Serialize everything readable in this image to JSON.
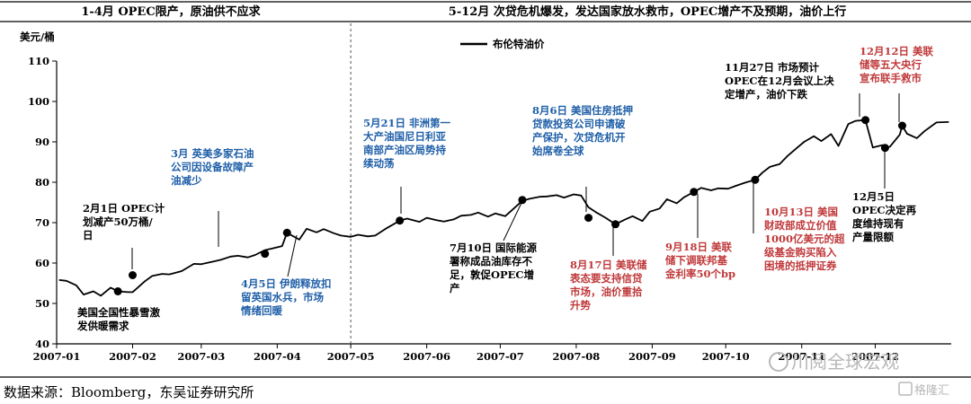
{
  "header": {
    "left": "1-4月  OPEC限产，原油供不应求",
    "right": "5-12月  次贷危机爆发，发达国家放水救市，OPEC增产不及预期，油价上行"
  },
  "source_note": "数据来源：Bloomberg，东吴证券研究所",
  "watermark": {
    "text1": "川阅全球宏观",
    "text2": "格隆汇"
  },
  "colors": {
    "line": "#000000",
    "blue_annotation": "#1f5fa8",
    "red_annotation": "#c0393b",
    "divider": "#555555"
  },
  "chart_data": {
    "type": "line",
    "title": "",
    "ylabel": "美元/桶",
    "xlabel": "",
    "ylim": [
      40,
      110
    ],
    "yticks": [
      "40",
      "50",
      "60",
      "70",
      "80",
      "90",
      "100",
      "110"
    ],
    "xticks": [
      "2007-01",
      "2007-02",
      "2007-03",
      "2007-04",
      "2007-05",
      "2007-06",
      "2007-07",
      "2007-08",
      "2007-09",
      "2007-10",
      "2007-11",
      "2007-12"
    ],
    "legend": {
      "label": "布伦特油价",
      "position": "top-center"
    },
    "grid": false,
    "divider_at": "2007-05-01",
    "series": [
      {
        "name": "布伦特油价",
        "points": [
          [
            "2007-01-02",
            55.8
          ],
          [
            "2007-01-05",
            55.6
          ],
          [
            "2007-01-09",
            54.5
          ],
          [
            "2007-01-12",
            52.2
          ],
          [
            "2007-01-16",
            53.0
          ],
          [
            "2007-01-19",
            51.9
          ],
          [
            "2007-01-23",
            53.9
          ],
          [
            "2007-01-26",
            53.0
          ],
          [
            "2007-01-30",
            52.8
          ],
          [
            "2007-02-01",
            52.8
          ],
          [
            "2007-02-06",
            55.5
          ],
          [
            "2007-02-09",
            56.8
          ],
          [
            "2007-02-13",
            57.3
          ],
          [
            "2007-02-16",
            57.2
          ],
          [
            "2007-02-21",
            58.0
          ],
          [
            "2007-02-26",
            59.8
          ],
          [
            "2007-03-01",
            59.7
          ],
          [
            "2007-03-06",
            60.4
          ],
          [
            "2007-03-09",
            60.8
          ],
          [
            "2007-03-13",
            61.6
          ],
          [
            "2007-03-16",
            61.8
          ],
          [
            "2007-03-20",
            61.4
          ],
          [
            "2007-03-23",
            62.0
          ],
          [
            "2007-03-27",
            63.2
          ],
          [
            "2007-03-30",
            63.6
          ],
          [
            "2007-04-03",
            64.2
          ],
          [
            "2007-04-05",
            67.5
          ],
          [
            "2007-04-10",
            65.8
          ],
          [
            "2007-04-13",
            68.5
          ],
          [
            "2007-04-17",
            67.6
          ],
          [
            "2007-04-20",
            68.4
          ],
          [
            "2007-04-24",
            67.4
          ],
          [
            "2007-04-27",
            66.8
          ],
          [
            "2007-05-01",
            66.5
          ],
          [
            "2007-05-04",
            67.0
          ],
          [
            "2007-05-08",
            66.6
          ],
          [
            "2007-05-11",
            66.8
          ],
          [
            "2007-05-15",
            68.4
          ],
          [
            "2007-05-21",
            70.5
          ],
          [
            "2007-05-24",
            71.0
          ],
          [
            "2007-05-29",
            70.2
          ],
          [
            "2007-06-01",
            71.2
          ],
          [
            "2007-06-05",
            70.6
          ],
          [
            "2007-06-08",
            70.3
          ],
          [
            "2007-06-12",
            70.8
          ],
          [
            "2007-06-15",
            71.7
          ],
          [
            "2007-06-19",
            71.9
          ],
          [
            "2007-06-22",
            72.5
          ],
          [
            "2007-06-26",
            71.5
          ],
          [
            "2007-06-29",
            72.3
          ],
          [
            "2007-07-03",
            71.6
          ],
          [
            "2007-07-06",
            73.2
          ],
          [
            "2007-07-10",
            75.4
          ],
          [
            "2007-07-13",
            75.9
          ],
          [
            "2007-07-17",
            76.4
          ],
          [
            "2007-07-20",
            76.5
          ],
          [
            "2007-07-24",
            76.8
          ],
          [
            "2007-07-27",
            76.2
          ],
          [
            "2007-07-31",
            77.0
          ],
          [
            "2007-08-03",
            76.7
          ],
          [
            "2007-08-06",
            73.8
          ],
          [
            "2007-08-09",
            72.6
          ],
          [
            "2007-08-13",
            71.2
          ],
          [
            "2007-08-17",
            69.6
          ],
          [
            "2007-08-21",
            70.8
          ],
          [
            "2007-08-24",
            71.6
          ],
          [
            "2007-08-28",
            70.4
          ],
          [
            "2007-08-31",
            72.7
          ],
          [
            "2007-09-04",
            73.5
          ],
          [
            "2007-09-07",
            75.8
          ],
          [
            "2007-09-11",
            74.8
          ],
          [
            "2007-09-14",
            76.3
          ],
          [
            "2007-09-18",
            77.6
          ],
          [
            "2007-09-21",
            78.6
          ],
          [
            "2007-09-25",
            78.0
          ],
          [
            "2007-09-28",
            78.5
          ],
          [
            "2007-10-02",
            78.4
          ],
          [
            "2007-10-05",
            79.1
          ],
          [
            "2007-10-09",
            79.9
          ],
          [
            "2007-10-13",
            80.6
          ],
          [
            "2007-10-16",
            82.4
          ],
          [
            "2007-10-19",
            83.8
          ],
          [
            "2007-10-23",
            84.5
          ],
          [
            "2007-10-26",
            86.4
          ],
          [
            "2007-10-30",
            88.5
          ],
          [
            "2007-11-02",
            90.0
          ],
          [
            "2007-11-06",
            91.4
          ],
          [
            "2007-11-09",
            90.2
          ],
          [
            "2007-11-13",
            91.9
          ],
          [
            "2007-11-16",
            89.0
          ],
          [
            "2007-11-20",
            94.4
          ],
          [
            "2007-11-23",
            95.2
          ],
          [
            "2007-11-27",
            95.4
          ],
          [
            "2007-11-30",
            88.6
          ],
          [
            "2007-12-04",
            89.2
          ],
          [
            "2007-12-05",
            88.5
          ],
          [
            "2007-12-07",
            88.8
          ],
          [
            "2007-12-11",
            91.8
          ],
          [
            "2007-12-12",
            94.0
          ],
          [
            "2007-12-14",
            92.0
          ],
          [
            "2007-12-18",
            90.9
          ],
          [
            "2007-12-21",
            92.6
          ],
          [
            "2007-12-26",
            94.8
          ],
          [
            "2007-12-31",
            94.9
          ]
        ]
      }
    ],
    "annotations": [
      {
        "date": "2007-01-26",
        "value": 53.0,
        "color": "black",
        "position": "below",
        "lines": [
          "美国全国性暴雪激",
          "发供暖需求"
        ]
      },
      {
        "date": "2007-02-01",
        "value": 57.0,
        "color": "black",
        "position": "above",
        "lines": [
          "2月1日 OPEC计",
          "划减产50万桶/",
          "日"
        ]
      },
      {
        "date": "2007-03-27",
        "value": 62.3,
        "color": "blue",
        "position": "above",
        "lines": [
          "3月  英美多家石油",
          "公司因设备故障产",
          "油减少"
        ]
      },
      {
        "date": "2007-04-05",
        "value": 67.5,
        "color": "blue",
        "position": "below",
        "lines": [
          "4月5日  伊朗释放扣",
          "留英国水兵，市场",
          "情绪回暖"
        ]
      },
      {
        "date": "2007-05-21",
        "value": 70.5,
        "color": "blue",
        "position": "above",
        "lines": [
          "5月21日  非洲第一",
          "大产油国尼日利亚",
          "南部产油区局势持",
          "续动荡"
        ]
      },
      {
        "date": "2007-07-10",
        "value": 75.6,
        "color": "black",
        "position": "below",
        "lines": [
          "7月10日  国际能源",
          "署称成品油库存不",
          "足，敦促OPEC增",
          "产"
        ]
      },
      {
        "date": "2007-08-06",
        "value": 71.2,
        "color": "blue",
        "position": "above",
        "lines": [
          "8月6日  美国住房抵押",
          "贷款投资公司申请破",
          "产保护，次贷危机开",
          "始席卷全球"
        ]
      },
      {
        "date": "2007-08-17",
        "value": 69.6,
        "color": "red",
        "position": "below",
        "lines": [
          "8月17日  美联储",
          "表态要支持信贷",
          "市场，油价重拾",
          "升势"
        ]
      },
      {
        "date": "2007-09-18",
        "value": 77.6,
        "color": "red",
        "position": "below",
        "lines": [
          "9月18日  美联",
          "储下调联邦基",
          "金利率50个bp"
        ]
      },
      {
        "date": "2007-10-13",
        "value": 80.6,
        "color": "red",
        "position": "below",
        "lines": [
          "10月13日  美国",
          "财政部成立价值",
          "1000亿美元的超",
          "级基金购买陷入",
          "困境的抵押证券"
        ]
      },
      {
        "date": "2007-11-27",
        "value": 95.4,
        "color": "black",
        "position": "above",
        "lines": [
          "11月27日  市场预计",
          "OPEC在12月会议上决",
          "定增产，油价下跌"
        ]
      },
      {
        "date": "2007-12-05",
        "value": 88.5,
        "color": "black",
        "position": "below",
        "lines": [
          "12月5日",
          "OPEC决定再",
          "度维持现有",
          "产量限额"
        ]
      },
      {
        "date": "2007-12-12",
        "value": 94.0,
        "color": "red",
        "position": "above",
        "lines": [
          "12月12日  美联",
          "储等五大央行",
          "宣布联手救市"
        ]
      }
    ]
  }
}
